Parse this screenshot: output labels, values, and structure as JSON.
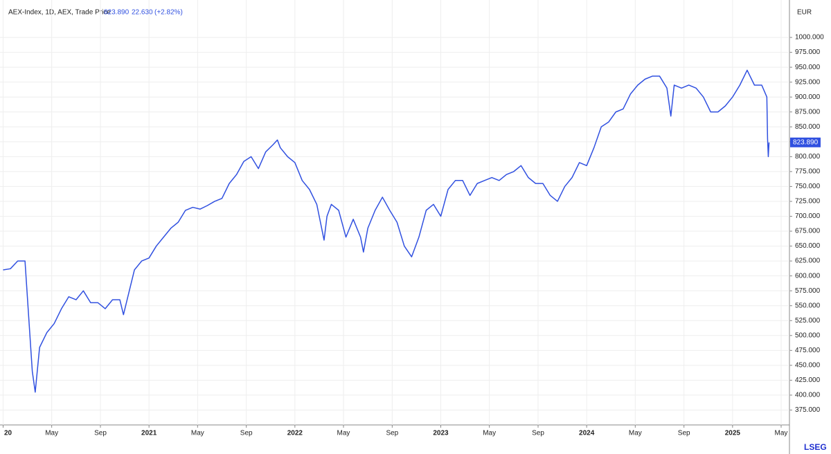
{
  "chart_data": {
    "type": "line",
    "change": "22.630",
    "change_pct": "(+2.82%)",
    "price_label": "823.890",
    "y_unit": "EUR",
    "logo": "LSEG",
    "grid": true,
    "xlim": [
      2020.0,
      2025.39
    ],
    "ylim": [
      350,
      1050
    ],
    "xticks": [
      {
        "value": 2020.0,
        "label": "20"
      },
      {
        "value": 2020.333,
        "label": "May"
      },
      {
        "value": 2020.667,
        "label": "Sep"
      },
      2021,
      {
        "value": 2021.333,
        "label": "May"
      },
      {
        "value": 2021.667,
        "label": "Sep"
      },
      2022,
      {
        "value": 2022.333,
        "label": "May"
      },
      {
        "value": 2022.667,
        "label": "Sep"
      },
      2023,
      {
        "value": 2023.333,
        "label": "May"
      },
      {
        "value": 2023.667,
        "label": "Sep"
      },
      2024,
      {
        "value": 2024.333,
        "label": "May"
      },
      {
        "value": 2024.667,
        "label": "Sep"
      },
      2025,
      {
        "value": 2025.333,
        "label": "May"
      }
    ],
    "yticks": [
      {
        "value": 375,
        "label": "375.000"
      },
      {
        "value": 400,
        "label": "400.000"
      },
      {
        "value": 425,
        "label": "425.000"
      },
      {
        "value": 450,
        "label": "450.000"
      },
      {
        "value": 475,
        "label": "475.000"
      },
      {
        "value": 500,
        "label": "500.000"
      },
      {
        "value": 525,
        "label": "525.000"
      },
      {
        "value": 550,
        "label": "550.000"
      },
      {
        "value": 575,
        "label": "575.000"
      },
      {
        "value": 600,
        "label": "600.000"
      },
      {
        "value": 625,
        "label": "625.000"
      },
      {
        "value": 650,
        "label": "650.000"
      },
      {
        "value": 675,
        "label": "675.000"
      },
      {
        "value": 700,
        "label": "700.000"
      },
      {
        "value": 725,
        "label": "725.000"
      },
      {
        "value": 750,
        "label": "750.000"
      },
      {
        "value": 775,
        "label": "775.000"
      },
      {
        "value": 800,
        "label": "800.000"
      },
      {
        "value": 825,
        "label": "825.000"
      },
      {
        "value": 850,
        "label": "850.000"
      },
      {
        "value": 875,
        "label": "875.000"
      },
      {
        "value": 900,
        "label": "900.000"
      },
      {
        "value": 925,
        "label": "925.000"
      },
      {
        "value": 950,
        "label": "950.000"
      },
      {
        "value": 975,
        "label": "975.000"
      },
      {
        "value": 1000,
        "label": "1000.000"
      }
    ],
    "x": [
      2020.0,
      2020.05,
      2020.1,
      2020.15,
      2020.2,
      2020.22,
      2020.25,
      2020.3,
      2020.35,
      2020.4,
      2020.45,
      2020.5,
      2020.55,
      2020.6,
      2020.65,
      2020.7,
      2020.75,
      2020.8,
      2020.825,
      2020.85,
      2020.9,
      2020.95,
      2021.0,
      2021.05,
      2021.1,
      2021.15,
      2021.2,
      2021.25,
      2021.3,
      2021.35,
      2021.4,
      2021.45,
      2021.5,
      2021.55,
      2021.6,
      2021.65,
      2021.7,
      2021.75,
      2021.8,
      2021.85,
      2021.88,
      2021.9,
      2021.95,
      2022.0,
      2022.05,
      2022.1,
      2022.15,
      2022.2,
      2022.22,
      2022.25,
      2022.3,
      2022.35,
      2022.4,
      2022.45,
      2022.47,
      2022.5,
      2022.55,
      2022.6,
      2022.65,
      2022.7,
      2022.75,
      2022.8,
      2022.85,
      2022.9,
      2022.95,
      2023.0,
      2023.05,
      2023.1,
      2023.15,
      2023.2,
      2023.25,
      2023.3,
      2023.35,
      2023.4,
      2023.45,
      2023.5,
      2023.55,
      2023.6,
      2023.65,
      2023.7,
      2023.75,
      2023.8,
      2023.85,
      2023.9,
      2023.95,
      2024.0,
      2024.05,
      2024.1,
      2024.15,
      2024.2,
      2024.25,
      2024.3,
      2024.35,
      2024.4,
      2024.45,
      2024.5,
      2024.55,
      2024.577,
      2024.6,
      2024.65,
      2024.7,
      2024.75,
      2024.8,
      2024.85,
      2024.9,
      2024.95,
      2025.0,
      2025.05,
      2025.1,
      2025.15,
      2025.2,
      2025.235,
      2025.24,
      2025.245,
      2025.25
    ],
    "series": [
      {
        "name": "AEX-Index, 1D, AEX, Trade Price",
        "color": "#3050e0",
        "values": [
          610,
          612,
          625,
          625,
          440,
          405,
          480,
          505,
          520,
          545,
          565,
          560,
          575,
          555,
          555,
          545,
          560,
          560,
          535,
          560,
          610,
          625,
          630,
          650,
          665,
          680,
          690,
          710,
          715,
          712,
          718,
          725,
          730,
          755,
          770,
          792,
          800,
          780,
          808,
          820,
          828,
          815,
          800,
          790,
          760,
          745,
          720,
          660,
          700,
          720,
          710,
          665,
          695,
          665,
          640,
          680,
          710,
          732,
          710,
          690,
          650,
          632,
          665,
          710,
          720,
          700,
          745,
          760,
          760,
          735,
          755,
          760,
          765,
          760,
          770,
          775,
          785,
          765,
          755,
          755,
          735,
          725,
          750,
          765,
          790,
          785,
          815,
          850,
          858,
          875,
          880,
          905,
          920,
          930,
          935,
          935,
          915,
          868,
          920,
          915,
          920,
          915,
          900,
          875,
          875,
          885,
          900,
          920,
          945,
          920,
          920,
          900,
          830,
          800,
          823.89
        ]
      }
    ]
  }
}
